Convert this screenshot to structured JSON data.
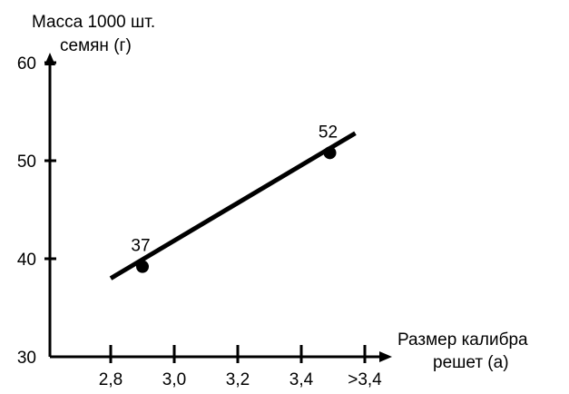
{
  "chart_data": {
    "type": "line",
    "ylabel_lines": [
      "Масса 1000 шт.",
      "семян (г)"
    ],
    "xlabel_lines": [
      "Размер калибра",
      "решет (а)"
    ],
    "categories": [
      "2,8",
      "3,0",
      "3,2",
      "3,4",
      ">3,4"
    ],
    "y_ticks": [
      30,
      40,
      50,
      60
    ],
    "ylim": [
      30,
      60
    ],
    "series": [
      {
        "values_at_categories": {
          "2,8": 38,
          "3,0": 39.9,
          "3,2": 43.8,
          "3,4": 47.6,
          ">3,4": 51.4
        },
        "line_start": {
          "x": 2.8,
          "y": 38
        },
        "line_end": {
          "x": 3.57,
          "y": 52.8
        }
      }
    ],
    "points": [
      {
        "x": 2.9,
        "y": 39.2,
        "label": "37"
      },
      {
        "x": 3.49,
        "y": 50.8,
        "label": "52"
      }
    ],
    "grid": false,
    "line_color": "#000000"
  }
}
